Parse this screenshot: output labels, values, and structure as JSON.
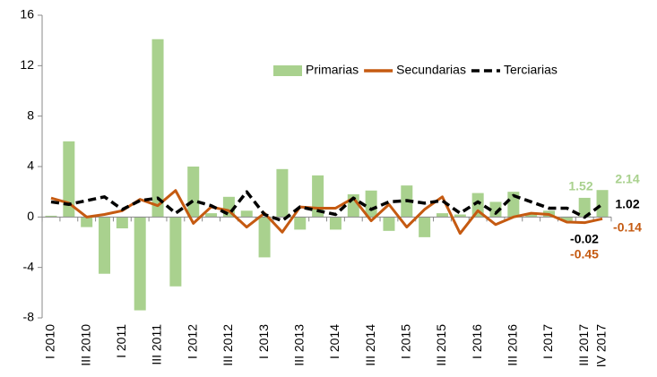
{
  "chart_data": {
    "type": "bar-line",
    "categories": [
      "I 2010",
      null,
      "III 2010",
      null,
      "I 2011",
      null,
      "III 2011",
      null,
      "I 2012",
      null,
      "III 2012",
      null,
      "I 2013",
      null,
      "III 2013",
      null,
      "I 2014",
      null,
      "III 2014",
      null,
      "I 2015",
      null,
      "III 2015",
      null,
      "I 2016",
      null,
      "III 2016",
      null,
      "I 2017",
      null,
      "III 2017",
      "IV 2017"
    ],
    "series": [
      {
        "name": "Primarias",
        "kind": "bar",
        "color": "#a9d18e",
        "values": [
          0.1,
          6.0,
          -0.8,
          -4.5,
          -0.9,
          -7.4,
          14.1,
          -5.5,
          4.0,
          0.3,
          1.6,
          0.5,
          -3.2,
          3.8,
          -1.0,
          3.3,
          -1.0,
          1.8,
          2.1,
          -1.1,
          2.5,
          -1.6,
          0.3,
          0.2,
          1.9,
          1.2,
          2.0,
          0.3,
          0.5,
          -0.3,
          1.52,
          2.14
        ],
        "value_labels": [
          null,
          null,
          null,
          null,
          null,
          null,
          null,
          null,
          null,
          null,
          null,
          null,
          null,
          null,
          null,
          null,
          null,
          null,
          null,
          null,
          null,
          null,
          null,
          null,
          null,
          null,
          null,
          null,
          null,
          null,
          "1.52",
          "2.14"
        ]
      },
      {
        "name": "Secundarias",
        "kind": "line",
        "color": "#c55a11",
        "values": [
          1.5,
          1.1,
          0.0,
          0.2,
          0.5,
          1.4,
          0.9,
          2.1,
          -0.5,
          0.8,
          0.5,
          -0.8,
          0.3,
          -1.2,
          0.8,
          0.7,
          0.7,
          1.5,
          -0.3,
          1.0,
          -0.8,
          0.6,
          1.6,
          -1.3,
          0.5,
          -0.6,
          0.0,
          0.3,
          0.2,
          -0.4,
          -0.45,
          -0.14
        ],
        "value_labels": [
          null,
          null,
          null,
          null,
          null,
          null,
          null,
          null,
          null,
          null,
          null,
          null,
          null,
          null,
          null,
          null,
          null,
          null,
          null,
          null,
          null,
          null,
          null,
          null,
          null,
          null,
          null,
          null,
          null,
          null,
          "-0.45",
          "-0.14"
        ]
      },
      {
        "name": "Terciarias",
        "kind": "dashed-line",
        "color": "#000000",
        "values": [
          1.2,
          1.0,
          1.3,
          1.6,
          0.6,
          1.3,
          1.5,
          0.3,
          1.3,
          0.9,
          0.2,
          2.0,
          0.2,
          -0.3,
          0.8,
          0.5,
          0.2,
          1.5,
          0.6,
          1.2,
          1.3,
          1.1,
          1.3,
          0.3,
          1.2,
          0.3,
          1.7,
          1.2,
          0.7,
          0.7,
          -0.02,
          1.02
        ],
        "value_labels": [
          null,
          null,
          null,
          null,
          null,
          null,
          null,
          null,
          null,
          null,
          null,
          null,
          null,
          null,
          null,
          null,
          null,
          null,
          null,
          null,
          null,
          null,
          null,
          null,
          null,
          null,
          null,
          null,
          null,
          null,
          "-0.02",
          "1.02"
        ]
      }
    ],
    "ylim": [
      -8,
      16
    ],
    "yticks": [
      -8,
      -4,
      0,
      4,
      8,
      12,
      16
    ],
    "legend": "top-right",
    "grid": false
  }
}
